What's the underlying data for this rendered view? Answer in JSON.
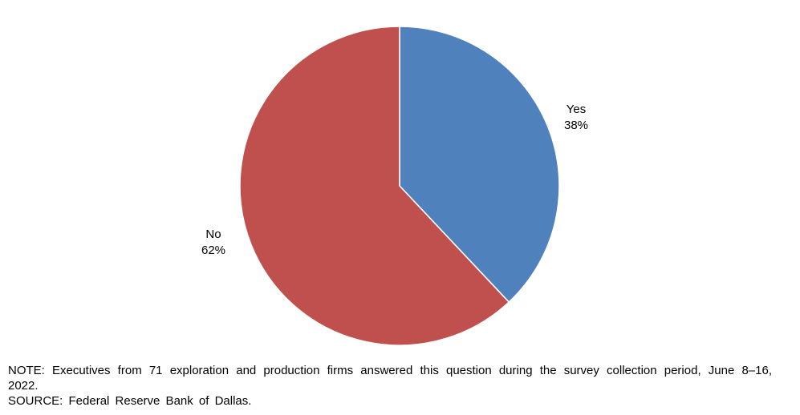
{
  "chart_data": {
    "type": "pie",
    "title": "",
    "slices": [
      {
        "label": "Yes",
        "value": 38,
        "value_label": "38%",
        "color": "#4F81BD"
      },
      {
        "label": "No",
        "value": 62,
        "value_label": "62%",
        "color": "#C0504D"
      }
    ],
    "start_angle_deg": 0,
    "direction": "clockwise",
    "legend": "none"
  },
  "footnotes": {
    "note": "NOTE: Executives from 71 exploration and production firms answered this question during the survey collection period, June 8–16, 2022.",
    "source": "SOURCE: Federal Reserve Bank of Dallas."
  }
}
